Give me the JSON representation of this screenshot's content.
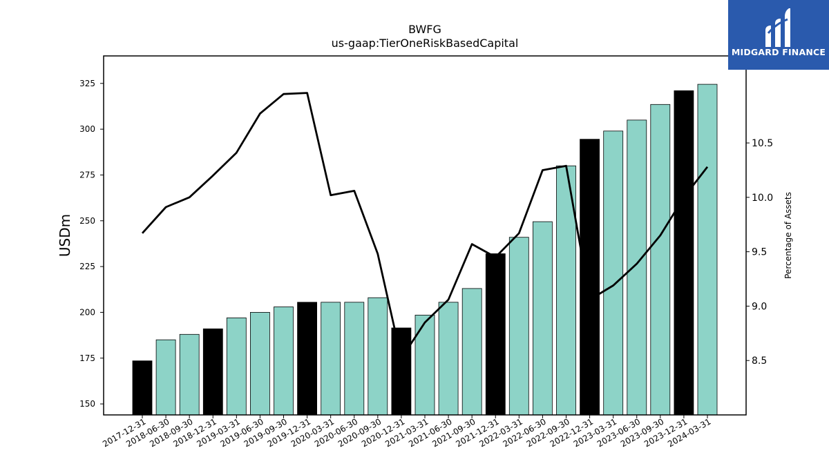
{
  "logo": {
    "text": "MIDGARD FINANCE"
  },
  "chart_data": {
    "type": "bar",
    "title": "BWFG",
    "subtitle": "us-gaap:TierOneRiskBasedCapital",
    "ylabel": "USDm",
    "y2label": "Percentage of Assets",
    "ylim": [
      144,
      340
    ],
    "y2lim": [
      8.0,
      11.3
    ],
    "yticks": [
      150,
      175,
      200,
      225,
      250,
      275,
      300,
      325
    ],
    "y2ticks": [
      8.5,
      9.0,
      9.5,
      10.0,
      10.5
    ],
    "categories": [
      "2017-12-31",
      "2018-06-30",
      "2018-09-30",
      "2018-12-31",
      "2019-03-31",
      "2019-06-30",
      "2019-09-30",
      "2019-12-31",
      "2020-03-31",
      "2020-06-30",
      "2020-09-30",
      "2020-12-31",
      "2021-03-31",
      "2021-06-30",
      "2021-09-30",
      "2021-12-31",
      "2022-03-31",
      "2022-06-30",
      "2022-09-30",
      "2022-12-31",
      "2023-03-31",
      "2023-06-30",
      "2023-09-30",
      "2023-12-31",
      "2024-03-31"
    ],
    "series": [
      {
        "type": "bar",
        "axis": "left",
        "values": [
          173.5,
          185,
          188,
          191,
          197,
          200,
          203,
          205.5,
          205.5,
          205.5,
          208,
          191.5,
          198.5,
          205.5,
          213,
          232,
          241,
          249.5,
          280,
          294.5,
          299,
          305,
          313.5,
          321,
          324.5
        ],
        "year_end": [
          true,
          false,
          false,
          true,
          false,
          false,
          false,
          true,
          false,
          false,
          false,
          true,
          false,
          false,
          false,
          true,
          false,
          false,
          false,
          true,
          false,
          false,
          false,
          true,
          false
        ]
      },
      {
        "type": "line",
        "axis": "right",
        "values": [
          9.67,
          9.91,
          10.0,
          10.2,
          10.41,
          10.77,
          10.95,
          10.96,
          10.02,
          10.06,
          9.48,
          8.52,
          8.85,
          9.06,
          9.57,
          9.45,
          9.67,
          10.25,
          10.29,
          9.06,
          9.19,
          9.39,
          9.65,
          10.0,
          10.28
        ]
      }
    ],
    "colors": {
      "bar": "#8dd3c7",
      "bar_year_end": "#000000",
      "line": "#000000"
    },
    "grid": false,
    "legend": "none"
  }
}
